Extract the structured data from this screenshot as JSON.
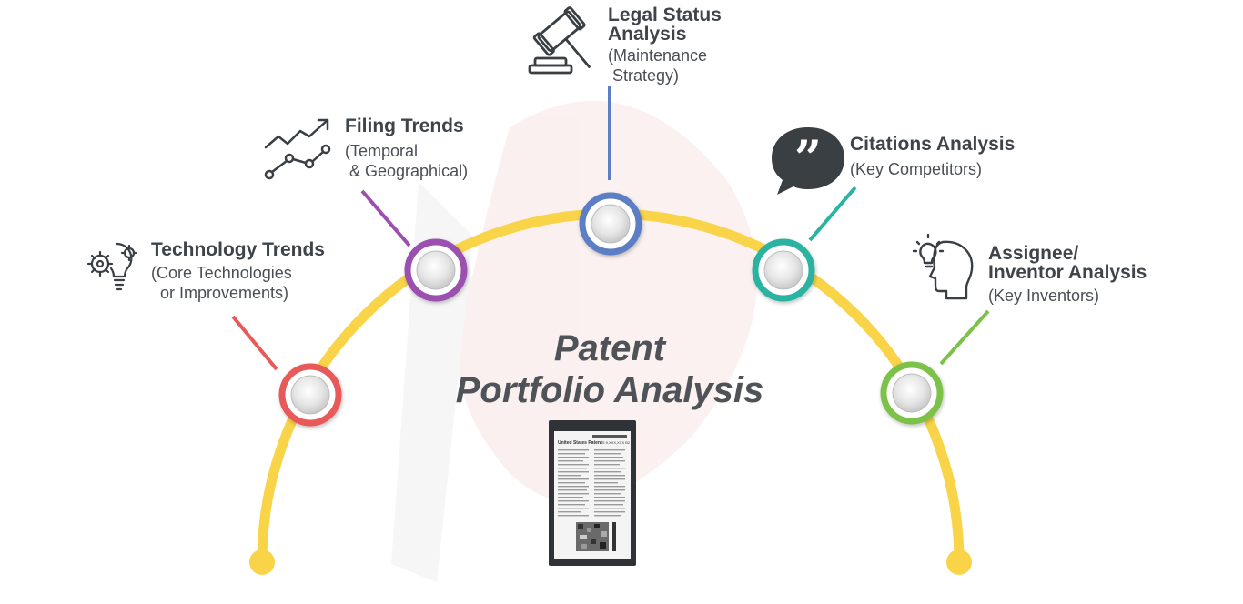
{
  "title": {
    "line1": "Patent",
    "line2": "Portfolio Analysis"
  },
  "colors": {
    "arc": "#f9d348",
    "technology": "#e85a5a",
    "filing": "#9b4fae",
    "legal": "#5b7ec4",
    "citations": "#2ab3a0",
    "assignee": "#7cc24a",
    "text": "#3e444a",
    "icon": "#3a3f44"
  },
  "nodes": [
    {
      "id": "technology",
      "head_lines": [
        "Technology Trends"
      ],
      "sub_lines": [
        "(Core Technologies",
        "  or Improvements)"
      ],
      "icon": "gear-bulb-icon"
    },
    {
      "id": "filing",
      "head_lines": [
        "Filing Trends"
      ],
      "sub_lines": [
        "(Temporal",
        " & Geographical)"
      ],
      "icon": "trend-line-icon"
    },
    {
      "id": "legal",
      "head_lines": [
        "Legal Status",
        "Analysis"
      ],
      "sub_lines": [
        "(Maintenance",
        " Strategy)"
      ],
      "icon": "gavel-icon"
    },
    {
      "id": "citations",
      "head_lines": [
        "Citations Analysis"
      ],
      "sub_lines": [
        "(Key Competitors)"
      ],
      "icon": "quote-bubble-icon"
    },
    {
      "id": "assignee",
      "head_lines": [
        "Assignee/",
        "Inventor Analysis"
      ],
      "sub_lines": [
        "(Key Inventors)"
      ],
      "icon": "head-bulb-icon"
    }
  ],
  "patent_document": {
    "icon": "patent-document-icon",
    "header_left": "United States Patent",
    "header_right": "US 9,XXX,XXX B2"
  }
}
